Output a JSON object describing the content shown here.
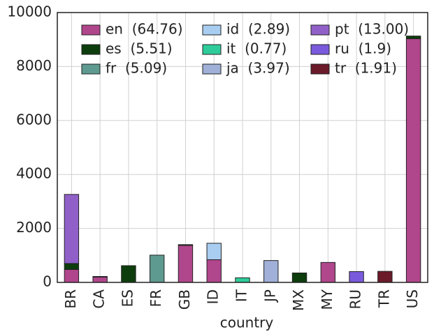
{
  "chart_data": {
    "type": "bar",
    "stacked": true,
    "x_label": "country",
    "categories": [
      "BR",
      "CA",
      "ES",
      "FR",
      "GB",
      "ID",
      "IT",
      "JP",
      "MX",
      "MY",
      "RU",
      "TR",
      "US"
    ],
    "series": [
      {
        "name": "en  (64.76)",
        "color": "#b0468c",
        "values": [
          480,
          200,
          0,
          0,
          1370,
          840,
          0,
          0,
          0,
          740,
          0,
          0,
          9030
        ]
      },
      {
        "name": "es  (5.51)",
        "color": "#0d3d0d",
        "values": [
          220,
          20,
          620,
          0,
          30,
          0,
          0,
          0,
          350,
          0,
          0,
          0,
          100
        ]
      },
      {
        "name": "fr  (5.09)",
        "color": "#5e9a90",
        "values": [
          0,
          0,
          0,
          1010,
          0,
          0,
          0,
          0,
          0,
          0,
          0,
          0,
          0
        ]
      },
      {
        "name": "id  (2.89)",
        "color": "#a8cdf0",
        "values": [
          0,
          0,
          0,
          0,
          0,
          610,
          0,
          0,
          0,
          0,
          0,
          0,
          0
        ]
      },
      {
        "name": "it  (0.77)",
        "color": "#2ecc9a",
        "values": [
          0,
          0,
          0,
          0,
          0,
          0,
          170,
          0,
          0,
          0,
          0,
          0,
          0
        ]
      },
      {
        "name": "ja  (3.97)",
        "color": "#a0b0d8",
        "values": [
          0,
          0,
          0,
          0,
          0,
          0,
          0,
          810,
          0,
          0,
          0,
          0,
          0
        ]
      },
      {
        "name": "pt  (13.00)",
        "color": "#9060c8",
        "values": [
          2560,
          0,
          0,
          0,
          0,
          0,
          0,
          0,
          0,
          0,
          0,
          0,
          0
        ]
      },
      {
        "name": "ru  (1.9)",
        "color": "#7a5adc",
        "values": [
          0,
          0,
          0,
          0,
          0,
          0,
          0,
          0,
          0,
          0,
          400,
          0,
          0
        ]
      },
      {
        "name": "tr  (1.91)",
        "color": "#6b1a2a",
        "values": [
          0,
          0,
          0,
          0,
          0,
          0,
          0,
          0,
          0,
          0,
          0,
          410,
          0
        ]
      }
    ],
    "ylim": [
      0,
      10000
    ],
    "yticks": [
      0,
      2000,
      4000,
      6000,
      8000,
      10000
    ],
    "grid": true,
    "legend": "top"
  }
}
